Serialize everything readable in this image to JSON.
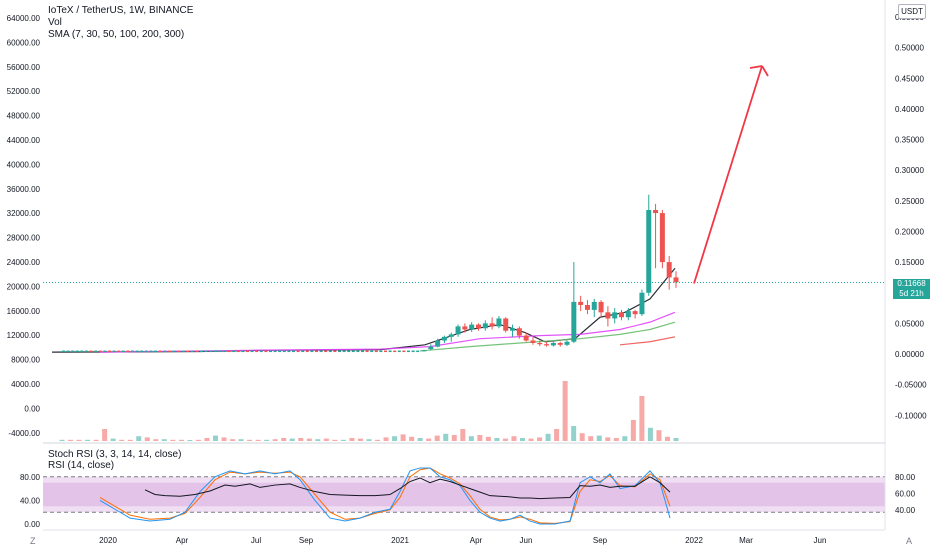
{
  "legend": {
    "title": "IoTeX / TetherUS, 1W, BINANCE",
    "vol": "Vol",
    "sma": "SMA (7, 30, 50, 100, 200, 300)",
    "stoch": "Stoch RSI (3, 3, 14, 14, close)",
    "rsi": "RSI (14, close)"
  },
  "currency": "USDT",
  "last_price": {
    "value": "0.11668",
    "countdown": "5d 21h",
    "color": "#26a69a"
  },
  "corners": {
    "left": "Z",
    "right": "A"
  },
  "chart_data": {
    "type": "candlestick",
    "symbol": "IoTeX / TetherUS",
    "interval": "1W",
    "exchange": "BINANCE",
    "left_axis": {
      "ticks": [
        "64000.00",
        "60000.00",
        "56000.00",
        "52000.00",
        "48000.00",
        "44000.00",
        "40000.00",
        "36000.00",
        "32000.00",
        "28000.00",
        "24000.00",
        "20000.00",
        "16000.00",
        "12000.00",
        "8000.00",
        "4000.00",
        "0.00",
        "-4000.00"
      ],
      "range": [
        -4000,
        64000
      ]
    },
    "right_axis": {
      "ticks": [
        "0.55000",
        "0.50000",
        "0.45000",
        "0.40000",
        "0.35000",
        "0.30000",
        "0.25000",
        "0.20000",
        "0.15000",
        "0.10000",
        "0.05000",
        "0.00000",
        "-0.05000",
        "-0.10000"
      ],
      "range": [
        -0.12,
        0.56
      ]
    },
    "time_axis": [
      "2020",
      "Apr",
      "Jul",
      "Sep",
      "2021",
      "Apr",
      "Jun",
      "Sep",
      "2022",
      "Mar",
      "Jun"
    ],
    "candles": [
      {
        "t": "2021-01",
        "o": 0.005,
        "h": 0.007,
        "l": 0.004,
        "c": 0.006
      },
      {
        "t": "2021-02",
        "o": 0.008,
        "h": 0.016,
        "l": 0.006,
        "c": 0.012
      },
      {
        "t": "2021-02",
        "o": 0.012,
        "h": 0.025,
        "l": 0.011,
        "c": 0.022
      },
      {
        "t": "2021-03",
        "o": 0.022,
        "h": 0.03,
        "l": 0.018,
        "c": 0.028
      },
      {
        "t": "2021-03",
        "o": 0.028,
        "h": 0.035,
        "l": 0.02,
        "c": 0.032
      },
      {
        "t": "2021-03",
        "o": 0.032,
        "h": 0.048,
        "l": 0.028,
        "c": 0.045
      },
      {
        "t": "2021-04",
        "o": 0.045,
        "h": 0.05,
        "l": 0.035,
        "c": 0.04
      },
      {
        "t": "2021-04",
        "o": 0.04,
        "h": 0.052,
        "l": 0.036,
        "c": 0.048
      },
      {
        "t": "2021-04",
        "o": 0.048,
        "h": 0.05,
        "l": 0.038,
        "c": 0.042
      },
      {
        "t": "2021-04",
        "o": 0.042,
        "h": 0.055,
        "l": 0.038,
        "c": 0.05
      },
      {
        "t": "2021-05",
        "o": 0.05,
        "h": 0.06,
        "l": 0.04,
        "c": 0.045
      },
      {
        "t": "2021-05",
        "o": 0.045,
        "h": 0.062,
        "l": 0.042,
        "c": 0.058
      },
      {
        "t": "2021-05",
        "o": 0.058,
        "h": 0.06,
        "l": 0.035,
        "c": 0.038
      },
      {
        "t": "2021-05",
        "o": 0.038,
        "h": 0.048,
        "l": 0.028,
        "c": 0.042
      },
      {
        "t": "2021-06",
        "o": 0.042,
        "h": 0.045,
        "l": 0.025,
        "c": 0.03
      },
      {
        "t": "2021-06",
        "o": 0.03,
        "h": 0.035,
        "l": 0.02,
        "c": 0.022
      },
      {
        "t": "2021-06",
        "o": 0.022,
        "h": 0.028,
        "l": 0.015,
        "c": 0.018
      },
      {
        "t": "2021-06",
        "o": 0.018,
        "h": 0.022,
        "l": 0.013,
        "c": 0.016
      },
      {
        "t": "2021-07",
        "o": 0.016,
        "h": 0.02,
        "l": 0.012,
        "c": 0.014
      },
      {
        "t": "2021-07",
        "o": 0.014,
        "h": 0.02,
        "l": 0.012,
        "c": 0.018
      },
      {
        "t": "2021-07",
        "o": 0.018,
        "h": 0.02,
        "l": 0.012,
        "c": 0.015
      },
      {
        "t": "2021-07",
        "o": 0.015,
        "h": 0.022,
        "l": 0.013,
        "c": 0.02
      },
      {
        "t": "2021-08",
        "o": 0.02,
        "h": 0.15,
        "l": 0.018,
        "c": 0.085
      },
      {
        "t": "2021-08",
        "o": 0.085,
        "h": 0.095,
        "l": 0.07,
        "c": 0.08
      },
      {
        "t": "2021-08",
        "o": 0.08,
        "h": 0.088,
        "l": 0.065,
        "c": 0.072
      },
      {
        "t": "2021-08",
        "o": 0.072,
        "h": 0.09,
        "l": 0.06,
        "c": 0.085
      },
      {
        "t": "2021-09",
        "o": 0.085,
        "h": 0.088,
        "l": 0.06,
        "c": 0.068
      },
      {
        "t": "2021-09",
        "o": 0.068,
        "h": 0.078,
        "l": 0.045,
        "c": 0.058
      },
      {
        "t": "2021-09",
        "o": 0.058,
        "h": 0.075,
        "l": 0.05,
        "c": 0.068
      },
      {
        "t": "2021-09",
        "o": 0.068,
        "h": 0.072,
        "l": 0.055,
        "c": 0.06
      },
      {
        "t": "2021-10",
        "o": 0.06,
        "h": 0.075,
        "l": 0.055,
        "c": 0.07
      },
      {
        "t": "2021-10",
        "o": 0.07,
        "h": 0.072,
        "l": 0.058,
        "c": 0.065
      },
      {
        "t": "2021-10",
        "o": 0.065,
        "h": 0.105,
        "l": 0.062,
        "c": 0.1
      },
      {
        "t": "2021-10",
        "o": 0.1,
        "h": 0.26,
        "l": 0.095,
        "c": 0.235
      },
      {
        "t": "2021-11",
        "o": 0.235,
        "h": 0.245,
        "l": 0.14,
        "c": 0.23
      },
      {
        "t": "2021-11",
        "o": 0.23,
        "h": 0.235,
        "l": 0.14,
        "c": 0.15
      },
      {
        "t": "2021-11",
        "o": 0.15,
        "h": 0.16,
        "l": 0.105,
        "c": 0.125
      },
      {
        "t": "2021-11",
        "o": 0.125,
        "h": 0.135,
        "l": 0.108,
        "c": 0.117
      }
    ],
    "sma": [
      {
        "color": "#131722",
        "points": [
          [
            52,
            0.003
          ],
          [
            200,
            0.004
          ],
          [
            260,
            0.006
          ],
          [
            380,
            0.007
          ],
          [
            425,
            0.015
          ],
          [
            470,
            0.04
          ],
          [
            500,
            0.048
          ],
          [
            525,
            0.035
          ],
          [
            545,
            0.02
          ],
          [
            575,
            0.025
          ],
          [
            600,
            0.06
          ],
          [
            625,
            0.068
          ],
          [
            650,
            0.09
          ],
          [
            675,
            0.14
          ]
        ]
      },
      {
        "color": "#e040fb",
        "points": [
          [
            100,
            0.003
          ],
          [
            250,
            0.006
          ],
          [
            380,
            0.008
          ],
          [
            430,
            0.012
          ],
          [
            480,
            0.025
          ],
          [
            540,
            0.03
          ],
          [
            580,
            0.032
          ],
          [
            620,
            0.04
          ],
          [
            650,
            0.052
          ],
          [
            675,
            0.068
          ]
        ]
      },
      {
        "color": "#66bb6a",
        "points": [
          [
            420,
            0.005
          ],
          [
            470,
            0.012
          ],
          [
            520,
            0.018
          ],
          [
            580,
            0.025
          ],
          [
            620,
            0.032
          ],
          [
            650,
            0.04
          ],
          [
            675,
            0.052
          ]
        ]
      },
      {
        "color": "#ef5350",
        "points": [
          [
            620,
            0.015
          ],
          [
            650,
            0.02
          ],
          [
            675,
            0.028
          ]
        ]
      }
    ],
    "volume": [
      0.02,
      0.02,
      0.02,
      0.02,
      0.02,
      0.2,
      0.04,
      0.02,
      0.02,
      0.08,
      0.06,
      0.03,
      0.03,
      0.02,
      0.02,
      0.01,
      0.02,
      0.05,
      0.09,
      0.06,
      0.03,
      0.03,
      0.02,
      0.02,
      0.02,
      0.03,
      0.05,
      0.04,
      0.05,
      0.04,
      0.03,
      0.04,
      0.02,
      0.02,
      0.05,
      0.04,
      0.03,
      0.02,
      0.06,
      0.08,
      0.11,
      0.07,
      0.05,
      0.04,
      0.09,
      0.12,
      0.1,
      0.2,
      0.08,
      0.1,
      0.07,
      0.05,
      0.04,
      0.08,
      0.05,
      0.04,
      0.06,
      0.12,
      0.2,
      1.0,
      0.25,
      0.13,
      0.08,
      0.09,
      0.06,
      0.05,
      0.08,
      0.35,
      0.75,
      0.22,
      0.18,
      0.07,
      0.05
    ],
    "stoch_rsi": {
      "levels": [
        80,
        20
      ],
      "axis_left": [
        "80.00",
        "40.00",
        "0.00"
      ],
      "axis_right": [
        "80.00",
        "60.00",
        "40.00"
      ],
      "k_color": "#2196f3",
      "d_color": "#ff6d00",
      "k": [
        [
          100,
          40
        ],
        [
          115,
          25
        ],
        [
          130,
          10
        ],
        [
          150,
          5
        ],
        [
          170,
          8
        ],
        [
          185,
          20
        ],
        [
          200,
          55
        ],
        [
          215,
          80
        ],
        [
          230,
          90
        ],
        [
          245,
          85
        ],
        [
          260,
          90
        ],
        [
          275,
          85
        ],
        [
          290,
          90
        ],
        [
          300,
          75
        ],
        [
          315,
          40
        ],
        [
          330,
          10
        ],
        [
          345,
          5
        ],
        [
          360,
          10
        ],
        [
          375,
          20
        ],
        [
          390,
          25
        ],
        [
          400,
          55
        ],
        [
          410,
          90
        ],
        [
          420,
          95
        ],
        [
          430,
          95
        ],
        [
          440,
          80
        ],
        [
          450,
          75
        ],
        [
          460,
          65
        ],
        [
          470,
          40
        ],
        [
          480,
          20
        ],
        [
          490,
          10
        ],
        [
          500,
          5
        ],
        [
          510,
          8
        ],
        [
          520,
          15
        ],
        [
          530,
          5
        ],
        [
          540,
          0
        ],
        [
          555,
          0
        ],
        [
          570,
          5
        ],
        [
          580,
          70
        ],
        [
          590,
          80
        ],
        [
          600,
          70
        ],
        [
          610,
          85
        ],
        [
          620,
          60
        ],
        [
          635,
          65
        ],
        [
          650,
          90
        ],
        [
          660,
          70
        ],
        [
          670,
          10
        ]
      ],
      "d": [
        [
          100,
          45
        ],
        [
          115,
          30
        ],
        [
          130,
          15
        ],
        [
          150,
          8
        ],
        [
          170,
          10
        ],
        [
          185,
          18
        ],
        [
          200,
          45
        ],
        [
          215,
          75
        ],
        [
          230,
          88
        ],
        [
          245,
          85
        ],
        [
          260,
          88
        ],
        [
          275,
          86
        ],
        [
          290,
          88
        ],
        [
          300,
          80
        ],
        [
          315,
          50
        ],
        [
          330,
          20
        ],
        [
          345,
          8
        ],
        [
          360,
          10
        ],
        [
          375,
          18
        ],
        [
          390,
          24
        ],
        [
          400,
          45
        ],
        [
          410,
          80
        ],
        [
          420,
          92
        ],
        [
          430,
          95
        ],
        [
          440,
          85
        ],
        [
          450,
          78
        ],
        [
          460,
          68
        ],
        [
          470,
          48
        ],
        [
          480,
          25
        ],
        [
          490,
          12
        ],
        [
          500,
          7
        ],
        [
          510,
          8
        ],
        [
          520,
          12
        ],
        [
          530,
          8
        ],
        [
          540,
          2
        ],
        [
          555,
          1
        ],
        [
          570,
          4
        ],
        [
          580,
          55
        ],
        [
          590,
          75
        ],
        [
          600,
          72
        ],
        [
          610,
          82
        ],
        [
          620,
          65
        ],
        [
          635,
          63
        ],
        [
          650,
          85
        ],
        [
          660,
          75
        ],
        [
          670,
          30
        ]
      ],
      "rsi_color": "#131722",
      "rsi": [
        [
          145,
          58
        ],
        [
          155,
          50
        ],
        [
          165,
          48
        ],
        [
          180,
          47
        ],
        [
          195,
          50
        ],
        [
          210,
          56
        ],
        [
          225,
          66
        ],
        [
          235,
          64
        ],
        [
          250,
          68
        ],
        [
          260,
          62
        ],
        [
          275,
          66
        ],
        [
          290,
          68
        ],
        [
          300,
          62
        ],
        [
          315,
          55
        ],
        [
          330,
          50
        ],
        [
          345,
          49
        ],
        [
          360,
          48
        ],
        [
          375,
          48
        ],
        [
          390,
          50
        ],
        [
          400,
          60
        ],
        [
          410,
          72
        ],
        [
          420,
          78
        ],
        [
          430,
          70
        ],
        [
          440,
          76
        ],
        [
          450,
          72
        ],
        [
          460,
          66
        ],
        [
          470,
          60
        ],
        [
          480,
          54
        ],
        [
          490,
          48
        ],
        [
          500,
          47
        ],
        [
          510,
          46
        ],
        [
          520,
          44
        ],
        [
          530,
          44
        ],
        [
          540,
          43
        ],
        [
          555,
          44
        ],
        [
          570,
          45
        ],
        [
          580,
          65
        ],
        [
          590,
          64
        ],
        [
          600,
          66
        ],
        [
          610,
          62
        ],
        [
          620,
          64
        ],
        [
          635,
          64
        ],
        [
          650,
          80
        ],
        [
          660,
          70
        ],
        [
          670,
          54
        ]
      ]
    },
    "annotation_arrow": {
      "from": [
        "2021-11",
        0.115
      ],
      "to": [
        "2022-03",
        0.47
      ],
      "color": "#f23645"
    }
  }
}
